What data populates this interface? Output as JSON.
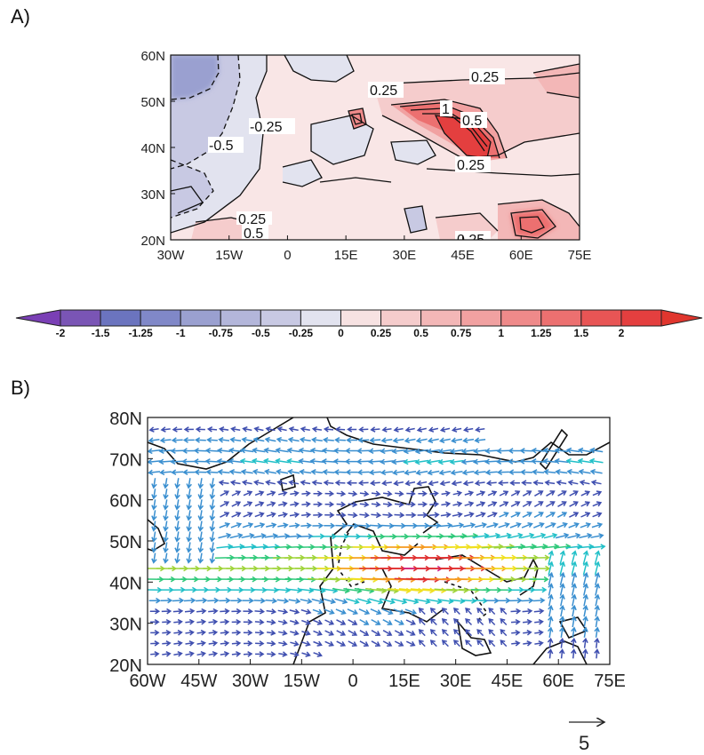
{
  "panels": [
    {
      "label": "A)"
    },
    {
      "label": "B)"
    }
  ],
  "chart_data": [
    {
      "type": "heatmap",
      "panel": "A)",
      "title": "",
      "xlabel": "",
      "ylabel": "",
      "xlim": [
        -30,
        75
      ],
      "ylim": [
        20,
        60
      ],
      "x_ticks": [
        "30W",
        "15W",
        "0",
        "15E",
        "30E",
        "45E",
        "60E",
        "75E"
      ],
      "y_ticks": [
        "60N",
        "50N",
        "40N",
        "30N",
        "20N"
      ],
      "contour_labels": [
        "0.25",
        "0.25",
        "1",
        "0.5",
        "-0.25",
        "-0.5",
        "0.25",
        "0.25",
        "0.5",
        "0.25"
      ],
      "colorbar": {
        "labels": [
          "-2",
          "-1.5",
          "-1.25",
          "-1",
          "-0.75",
          "-0.5",
          "-0.25",
          "0",
          "0.25",
          "0.5",
          "0.75",
          "1",
          "1.25",
          "1.5",
          "2"
        ],
        "colors": [
          "#7a55b5",
          "#6b74bf",
          "#8088c8",
          "#9aa0d0",
          "#b3b6da",
          "#c8c9e3",
          "#e2e3ef",
          "#f7e2e2",
          "#f5cccc",
          "#f3b7b7",
          "#f1a1a1",
          "#ef8a8a",
          "#ec7070",
          "#e85555",
          "#e43f3f"
        ],
        "extend": "both"
      }
    },
    {
      "type": "vector",
      "panel": "B)",
      "title": "",
      "xlabel": "",
      "ylabel": "",
      "xlim": [
        -60,
        75
      ],
      "ylim": [
        20,
        80
      ],
      "x_ticks": [
        "60W",
        "45W",
        "30W",
        "15W",
        "0",
        "15E",
        "30E",
        "45E",
        "60E",
        "75E"
      ],
      "y_ticks": [
        "80N",
        "70N",
        "60N",
        "50N",
        "40N",
        "30N",
        "20N"
      ],
      "reference_vector": "5"
    }
  ]
}
